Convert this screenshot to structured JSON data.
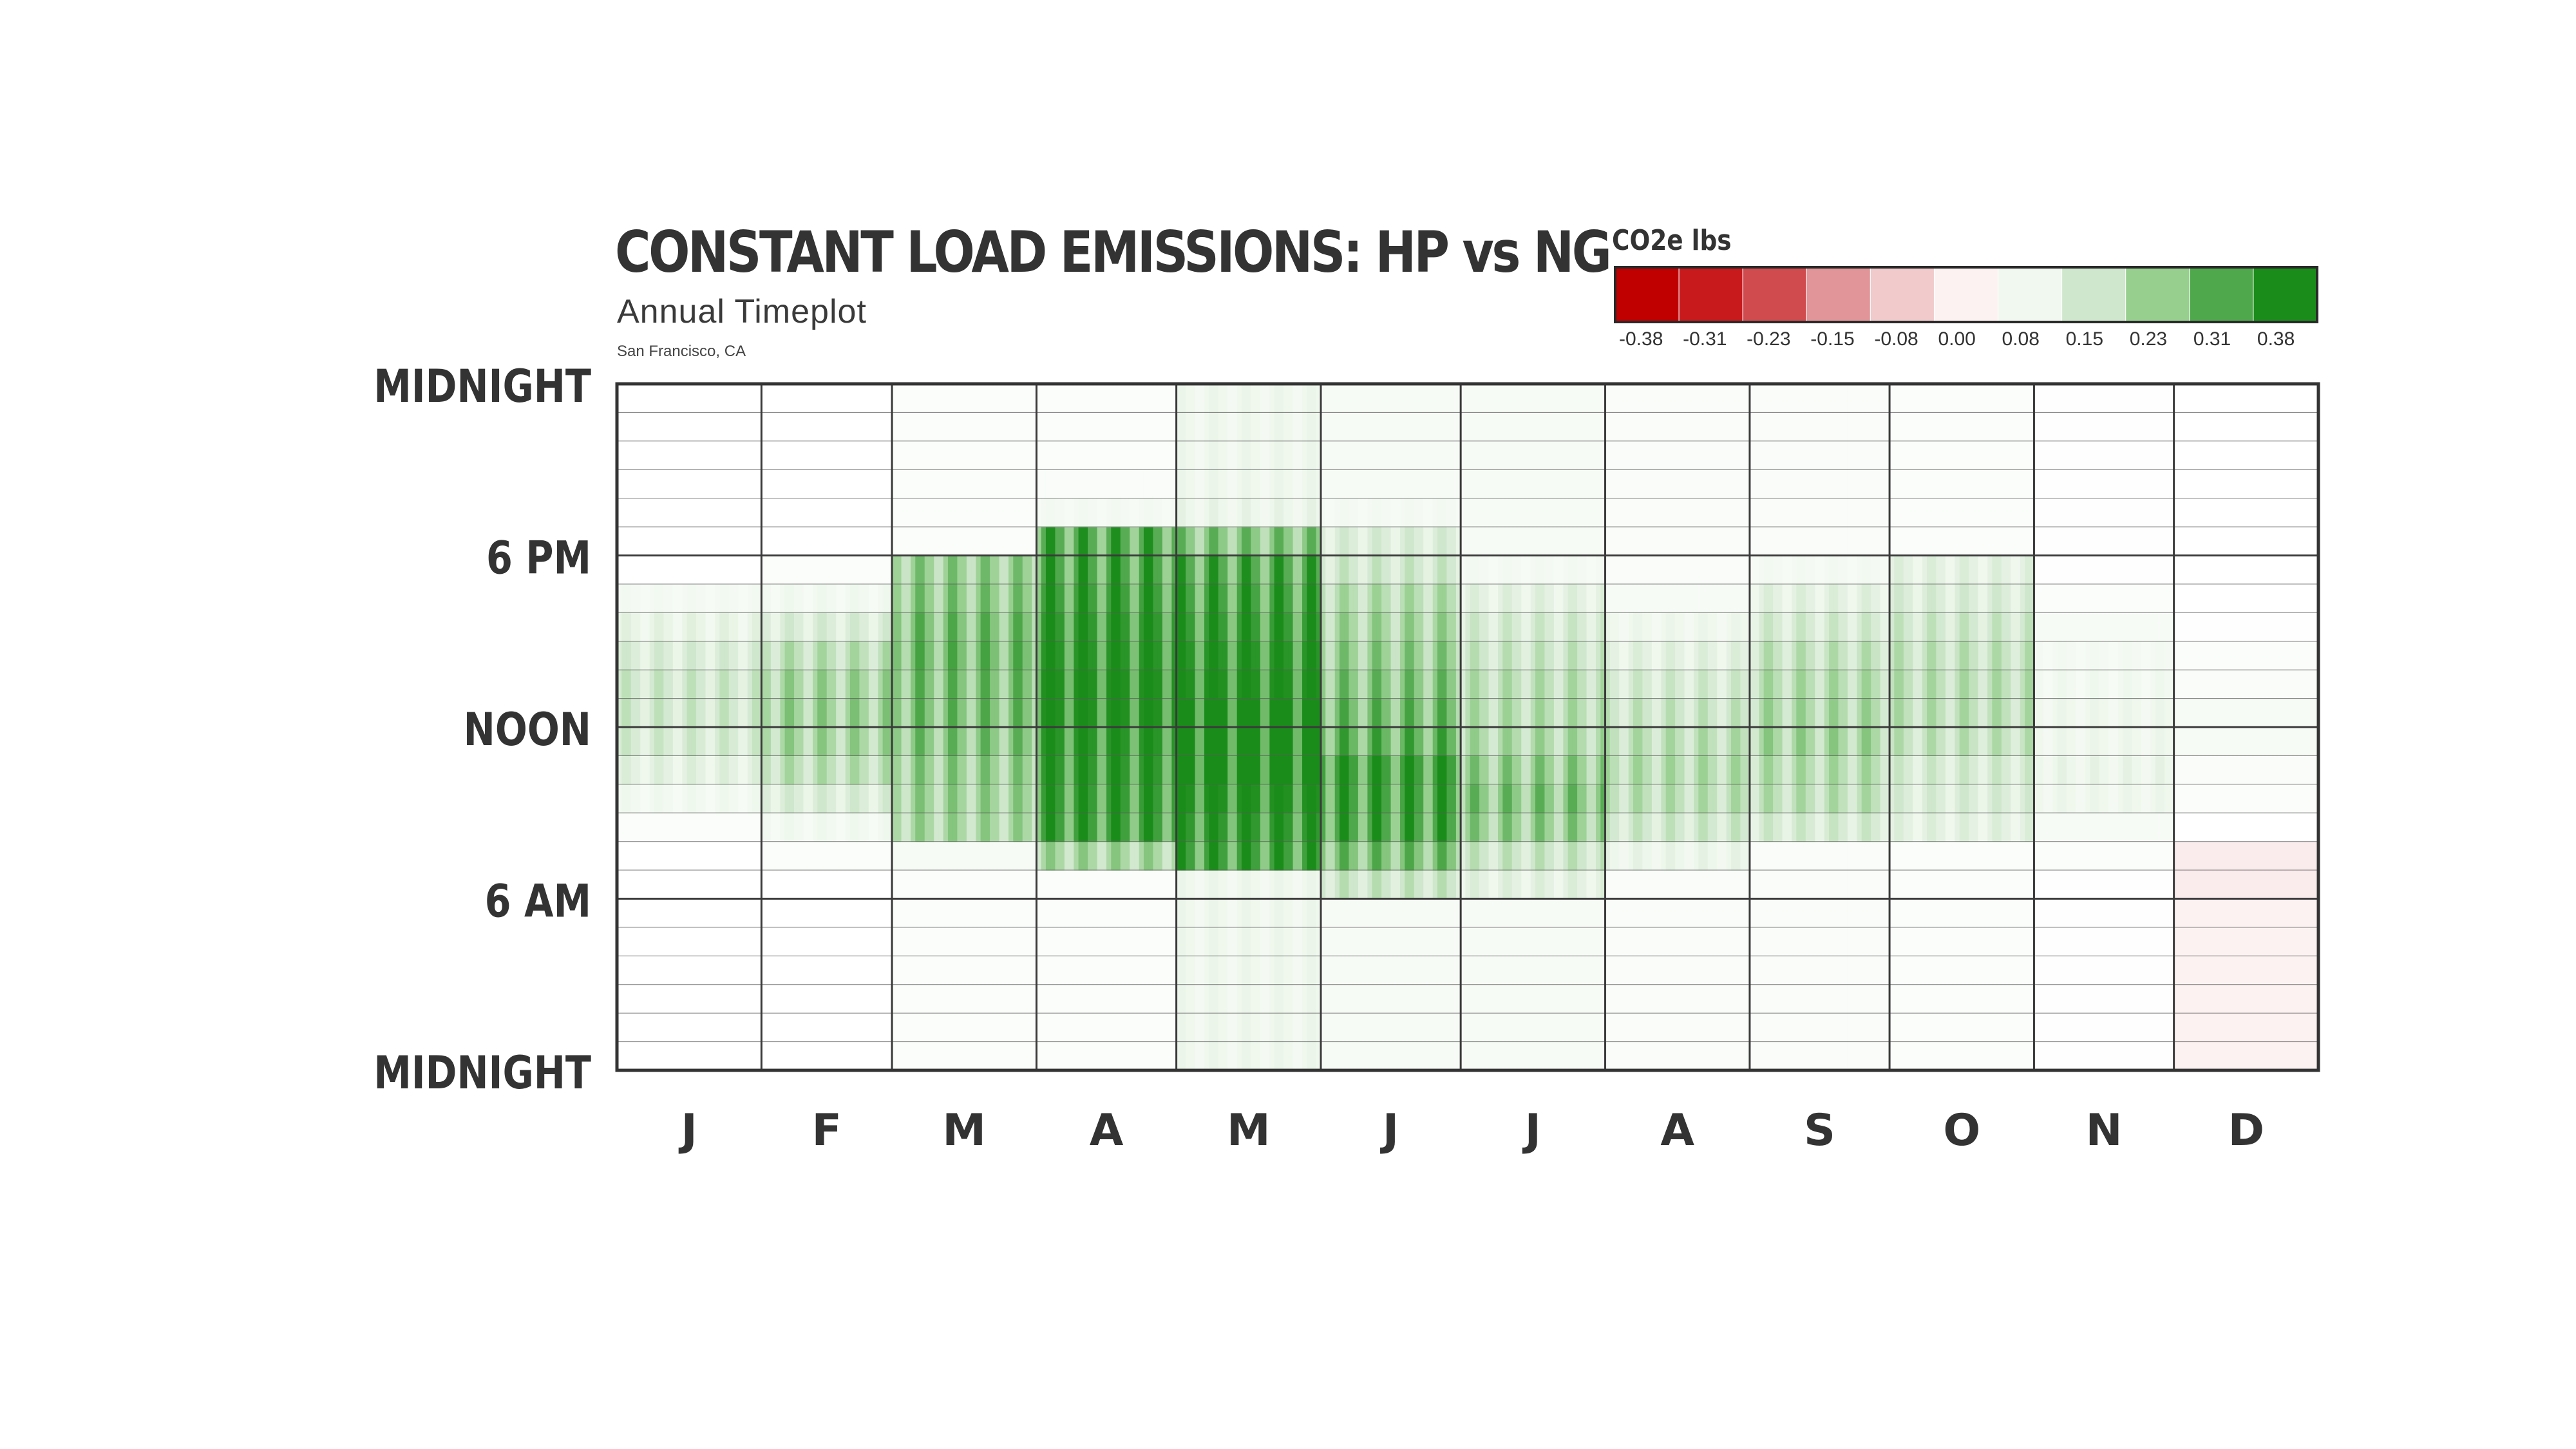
{
  "chart_data": {
    "type": "heatmap",
    "title": "CONSTANT LOAD EMISSIONS: HP vs NG",
    "subtitle": "Annual Timeplot",
    "location": "San Francisco, CA",
    "x_tick_labels": [
      "J",
      "F",
      "M",
      "A",
      "M",
      "J",
      "J",
      "A",
      "S",
      "O",
      "N",
      "D"
    ],
    "y_tick_labels": [
      "MIDNIGHT",
      "6 PM",
      "NOON",
      "6 AM",
      "MIDNIGHT"
    ],
    "y_axis_direction": "hours 0 (bottom) to 24 (top)",
    "grid": true,
    "legend": {
      "title": "CO2e lbs",
      "placement": "top-right",
      "ticks": [
        "-0.38",
        "-0.31",
        "-0.23",
        "-0.15",
        "-0.08",
        "0.00",
        "0.08",
        "0.15",
        "0.23",
        "0.31",
        "0.38"
      ],
      "colors": [
        "#c00000",
        "#c8191c",
        "#d04b4e",
        "#e29598",
        "#f1cacb",
        "#fdf2f2",
        "#f1f8ef",
        "#cfe7cc",
        "#97cf8f",
        "#4fa84b",
        "#1a8c1a"
      ]
    },
    "month_hour_values": [
      [
        0.0,
        0.0,
        0.0,
        0.0,
        0.0,
        0.0,
        0.0,
        0.0,
        0.02,
        0.06,
        0.1,
        0.13,
        0.14,
        0.14,
        0.12,
        0.09,
        0.05,
        0.0,
        0.0,
        0.0,
        0.0,
        0.0,
        0.0,
        0.0
      ],
      [
        0.0,
        0.0,
        0.0,
        0.0,
        0.0,
        0.0,
        0.0,
        0.02,
        0.06,
        0.12,
        0.17,
        0.2,
        0.21,
        0.2,
        0.17,
        0.12,
        0.06,
        0.02,
        0.0,
        0.0,
        0.0,
        0.0,
        0.0,
        0.0
      ],
      [
        0.02,
        0.02,
        0.02,
        0.02,
        0.02,
        0.02,
        0.02,
        0.04,
        0.2,
        0.21,
        0.22,
        0.24,
        0.25,
        0.25,
        0.26,
        0.25,
        0.23,
        0.22,
        0.02,
        0.02,
        0.02,
        0.02,
        0.02,
        0.02
      ],
      [
        0.02,
        0.02,
        0.02,
        0.02,
        0.02,
        0.02,
        0.02,
        0.2,
        0.33,
        0.34,
        0.35,
        0.36,
        0.37,
        0.37,
        0.36,
        0.35,
        0.33,
        0.31,
        0.3,
        0.05,
        0.03,
        0.02,
        0.02,
        0.02
      ],
      [
        0.07,
        0.07,
        0.07,
        0.07,
        0.07,
        0.07,
        0.07,
        0.33,
        0.35,
        0.37,
        0.38,
        0.38,
        0.38,
        0.37,
        0.36,
        0.34,
        0.32,
        0.3,
        0.24,
        0.08,
        0.07,
        0.07,
        0.07,
        0.07
      ],
      [
        0.04,
        0.04,
        0.04,
        0.04,
        0.04,
        0.04,
        0.15,
        0.25,
        0.31,
        0.32,
        0.33,
        0.28,
        0.26,
        0.24,
        0.22,
        0.2,
        0.18,
        0.14,
        0.12,
        0.05,
        0.04,
        0.04,
        0.04,
        0.04
      ],
      [
        0.04,
        0.04,
        0.04,
        0.04,
        0.04,
        0.04,
        0.1,
        0.15,
        0.22,
        0.24,
        0.22,
        0.19,
        0.18,
        0.17,
        0.15,
        0.13,
        0.1,
        0.05,
        0.04,
        0.04,
        0.04,
        0.04,
        0.04,
        0.04
      ],
      [
        0.03,
        0.03,
        0.03,
        0.03,
        0.03,
        0.03,
        0.03,
        0.08,
        0.14,
        0.17,
        0.18,
        0.17,
        0.15,
        0.13,
        0.1,
        0.07,
        0.04,
        0.03,
        0.03,
        0.03,
        0.03,
        0.03,
        0.03,
        0.03
      ],
      [
        0.03,
        0.03,
        0.03,
        0.03,
        0.03,
        0.03,
        0.03,
        0.03,
        0.13,
        0.17,
        0.18,
        0.2,
        0.19,
        0.18,
        0.16,
        0.13,
        0.1,
        0.05,
        0.03,
        0.03,
        0.03,
        0.03,
        0.03,
        0.03
      ],
      [
        0.02,
        0.02,
        0.02,
        0.02,
        0.02,
        0.02,
        0.02,
        0.02,
        0.1,
        0.12,
        0.13,
        0.16,
        0.17,
        0.17,
        0.16,
        0.14,
        0.12,
        0.1,
        0.02,
        0.02,
        0.02,
        0.02,
        0.02,
        0.02
      ],
      [
        0.01,
        0.01,
        0.01,
        0.01,
        0.01,
        0.01,
        0.01,
        0.02,
        0.04,
        0.07,
        0.08,
        0.07,
        0.07,
        0.06,
        0.05,
        0.04,
        0.02,
        0.01,
        0.01,
        0.01,
        0.01,
        0.01,
        0.01,
        0.01
      ],
      [
        -0.02,
        -0.02,
        -0.02,
        -0.02,
        -0.02,
        -0.02,
        -0.03,
        -0.03,
        0.0,
        0.02,
        0.03,
        0.04,
        0.04,
        0.03,
        0.02,
        0.01,
        0.0,
        0.0,
        0.0,
        0.0,
        0.0,
        0.0,
        0.0,
        0.0
      ]
    ]
  }
}
